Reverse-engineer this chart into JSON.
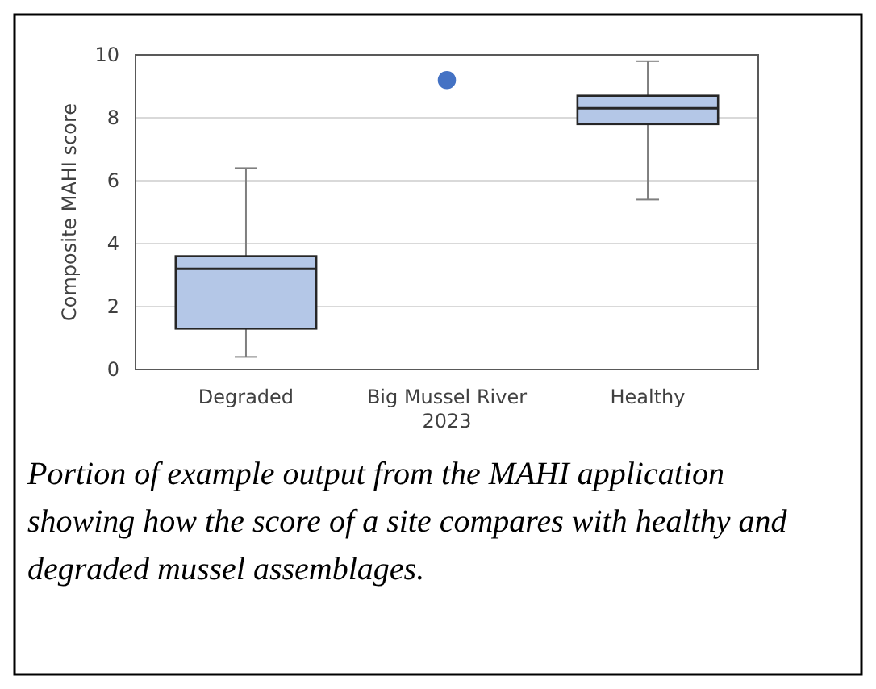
{
  "chart_data": {
    "type": "box",
    "ylabel": "Composite MAHI score",
    "categories": [
      "Degraded",
      "Big Mussel River 2023",
      "Healthy"
    ],
    "boxes": [
      {
        "low": 0.4,
        "q1": 1.3,
        "median": 3.2,
        "q3": 3.6,
        "high": 6.4
      },
      null,
      {
        "low": 5.4,
        "q1": 7.8,
        "median": 8.3,
        "q3": 8.7,
        "high": 9.8
      }
    ],
    "color": "#b4c7e7",
    "series": [
      {
        "type": "scatter",
        "x": [
          "Big Mussel River 2023"
        ],
        "values": [
          9.2
        ],
        "color": "#4472c4"
      }
    ],
    "marker": "circle",
    "ylim": [
      0,
      10
    ],
    "yticks": [
      0,
      2,
      4,
      6,
      8,
      10
    ],
    "grid": "y",
    "annotations": [
      "Portion of example output from the MAHI application showing how the score of a site compares with healthy and degraded mussel assemblages."
    ]
  }
}
